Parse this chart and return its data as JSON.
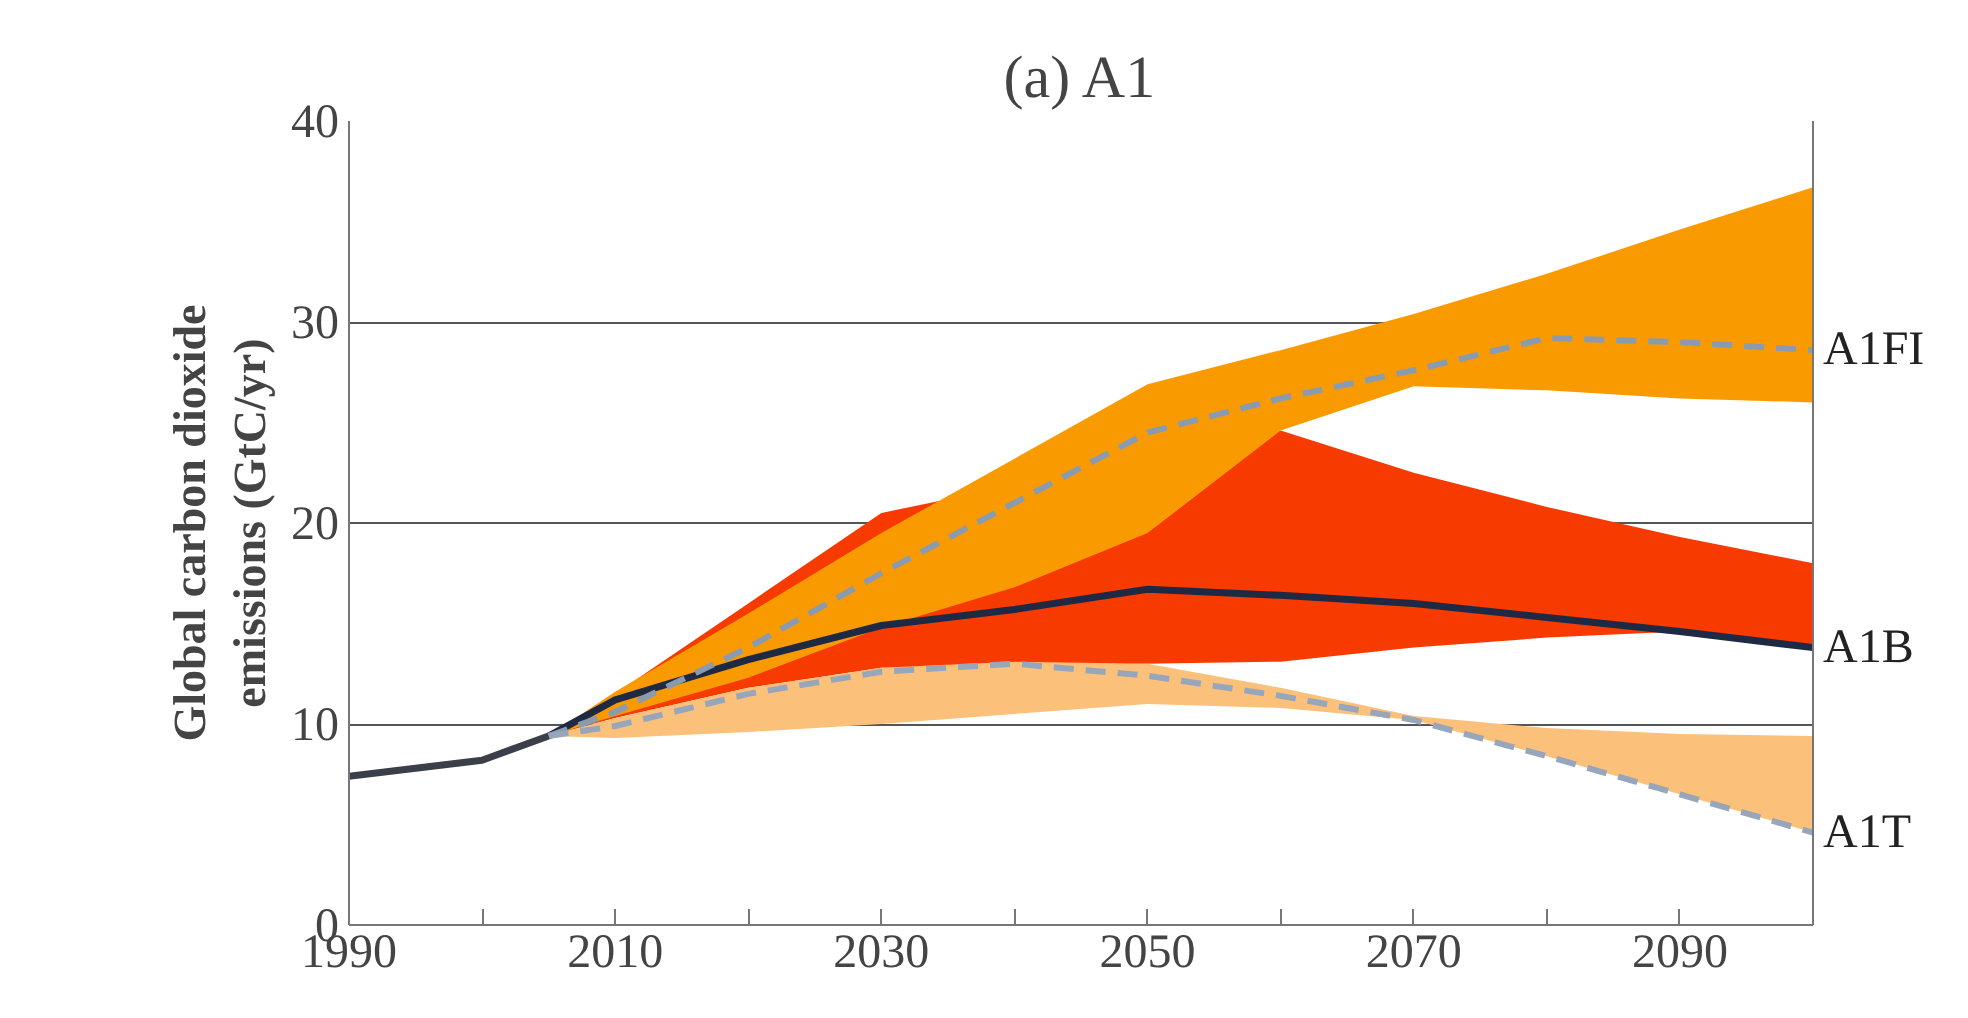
{
  "chart_data": {
    "type": "line",
    "title": "(a) A1",
    "ylabel": "Global carbon dioxide emissions (GtC/yr)",
    "xlim": [
      1990,
      2100
    ],
    "ylim": [
      0,
      40
    ],
    "xticks": [
      1990,
      {
        "value": 2000,
        "label": null
      },
      2010,
      {
        "value": 2020,
        "label": null
      },
      2030,
      {
        "value": 2040,
        "label": null
      },
      2050,
      {
        "value": 2060,
        "label": null
      },
      2070,
      {
        "value": 2080,
        "label": null
      },
      2090,
      {
        "value": 2100,
        "label": null
      }
    ],
    "yticks": [
      0,
      10,
      20,
      30,
      40
    ],
    "grid": "y",
    "marker": "none",
    "series": [
      {
        "name": "A1B",
        "color": "#1e2a44",
        "colors": [
          "#f73b00",
          "#f73b00",
          "#f73b00",
          "#f73b00",
          "#f73b00",
          "#f73b00",
          "#f73b00",
          "#f73b00",
          "#f73b00",
          "#f73b00",
          "#f73b00"
        ],
        "line_style": "solid",
        "x": [
          2005,
          2010,
          2020,
          2030,
          2040,
          2050,
          2060,
          2070,
          2080,
          2090,
          2100
        ],
        "values": [
          9.4,
          11.2,
          13.2,
          14.9,
          15.7,
          16.7,
          16.4,
          16.0,
          15.3,
          14.6,
          13.8
        ],
        "lower": [
          9.4,
          10.3,
          11.8,
          12.8,
          null,
          null,
          13.1,
          13.8,
          14.3,
          14.6,
          13.8
        ],
        "upper": [
          9.4,
          11.5,
          16.0,
          20.5,
          null,
          null,
          24.6,
          22.5,
          20.8,
          19.3,
          18.0
        ]
      },
      {
        "name": "A1FI",
        "color": "#8a9bb0",
        "colors": [
          "#f99b00",
          "#f99b00",
          "#f99b00",
          "#f99b00",
          "#f99b00",
          "#f99b00",
          "#f99b00",
          "#f99b00",
          "#f99b00",
          "#f99b00",
          "#f99b00"
        ],
        "line_style": "dashed",
        "x": [
          2005,
          2010,
          2020,
          2030,
          2040,
          2050,
          2060,
          2070,
          2080,
          2090,
          2100
        ],
        "values": [
          9.4,
          10.6,
          13.8,
          17.5,
          21.0,
          24.5,
          26.2,
          27.6,
          29.2,
          29.0,
          28.6
        ],
        "lower": [
          9.4,
          10.4,
          12.3,
          14.8,
          16.8,
          19.5,
          24.6,
          26.8,
          26.6,
          26.2,
          26.0
        ],
        "upper": [
          9.4,
          11.6,
          15.5,
          19.5,
          23.2,
          26.9,
          28.6,
          30.4,
          32.4,
          34.6,
          36.7
        ]
      },
      {
        "name": "A1T",
        "color": "#98a6bc",
        "colors": [
          "#fbc07a",
          "#fbc07a",
          "#fbc07a",
          "#fbc07a",
          "#fbc07a",
          "#fbc07a",
          "#fbc07a",
          "#fbc07a",
          "#fbc07a",
          "#fbc07a",
          "#fbc07a"
        ],
        "line_style": "dashed",
        "x": [
          2005,
          2010,
          2020,
          2030,
          2040,
          2050,
          2060,
          2070,
          2080,
          2090,
          2100
        ],
        "values": [
          9.4,
          9.9,
          11.5,
          12.6,
          13.0,
          12.4,
          11.4,
          10.2,
          8.4,
          6.5,
          4.6
        ],
        "lower": [
          9.4,
          9.3,
          9.6,
          10.0,
          10.5,
          11.0,
          10.8,
          10.2,
          8.4,
          6.5,
          4.6
        ],
        "upper": [
          9.4,
          10.3,
          11.8,
          12.8,
          13.1,
          13.0,
          11.8,
          10.4,
          9.8,
          9.5,
          9.4
        ]
      },
      {
        "color": "#3a3f4a",
        "line_style": "solid",
        "x": [
          1990,
          1995,
          2000,
          2005
        ],
        "values": [
          7.4,
          7.8,
          8.2,
          9.4
        ]
      }
    ]
  }
}
